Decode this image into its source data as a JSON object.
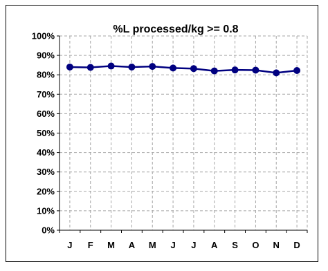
{
  "chart_data": {
    "type": "line",
    "title": "%L processed/kg >= 0.8",
    "xlabel": "",
    "ylabel": "",
    "categories": [
      "J",
      "F",
      "M",
      "A",
      "M",
      "J",
      "J",
      "A",
      "S",
      "O",
      "N",
      "D"
    ],
    "series": [
      {
        "values": [
          0.84,
          0.838,
          0.845,
          0.84,
          0.843,
          0.835,
          0.832,
          0.82,
          0.825,
          0.824,
          0.81,
          0.822
        ]
      }
    ],
    "ylim": [
      0,
      1
    ],
    "y_ticks": [
      "0%",
      "10%",
      "20%",
      "30%",
      "40%",
      "50%",
      "60%",
      "70%",
      "80%",
      "90%",
      "100%"
    ],
    "grid": true,
    "legend": "none",
    "colors": {
      "line": "#000080",
      "marker": "#000080",
      "grid": "#a6a6a6",
      "axis": "#000000"
    }
  }
}
